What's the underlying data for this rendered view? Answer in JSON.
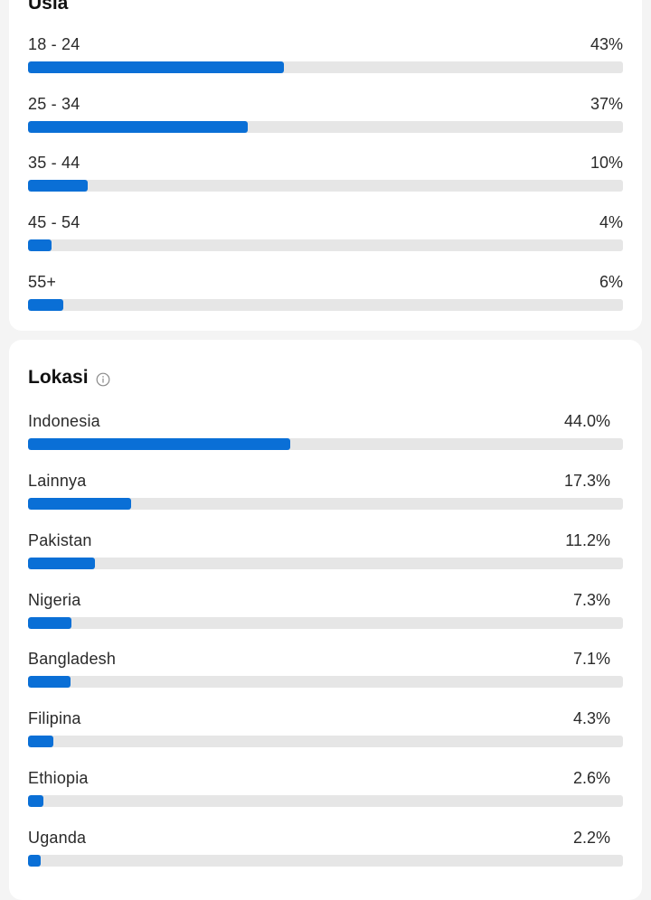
{
  "age": {
    "title": "Usia",
    "rows": [
      {
        "label": "18 - 24",
        "value": "43%",
        "fraction": 0.43
      },
      {
        "label": "25 - 34",
        "value": "37%",
        "fraction": 0.37
      },
      {
        "label": "35 - 44",
        "value": "10%",
        "fraction": 0.1
      },
      {
        "label": "45 - 54",
        "value": "4%",
        "fraction": 0.04
      },
      {
        "label": "55+",
        "value": "6%",
        "fraction": 0.06
      }
    ]
  },
  "location": {
    "title": "Lokasi",
    "info_icon": "info-circle-icon",
    "rows": [
      {
        "label": "Indonesia",
        "value": "44.0%",
        "fraction": 0.44
      },
      {
        "label": "Lainnya",
        "value": "17.3%",
        "fraction": 0.173
      },
      {
        "label": "Pakistan",
        "value": "11.2%",
        "fraction": 0.112
      },
      {
        "label": "Nigeria",
        "value": "7.3%",
        "fraction": 0.073
      },
      {
        "label": "Bangladesh",
        "value": "7.1%",
        "fraction": 0.071
      },
      {
        "label": "Filipina",
        "value": "4.3%",
        "fraction": 0.043
      },
      {
        "label": "Ethiopia",
        "value": "2.6%",
        "fraction": 0.026
      },
      {
        "label": "Uganda",
        "value": "2.2%",
        "fraction": 0.022
      }
    ]
  },
  "colors": {
    "bar_fill": "#0a6fd6",
    "bar_track": "#e6e6e6",
    "card": "#ffffff",
    "background": "#f4f4f4"
  }
}
